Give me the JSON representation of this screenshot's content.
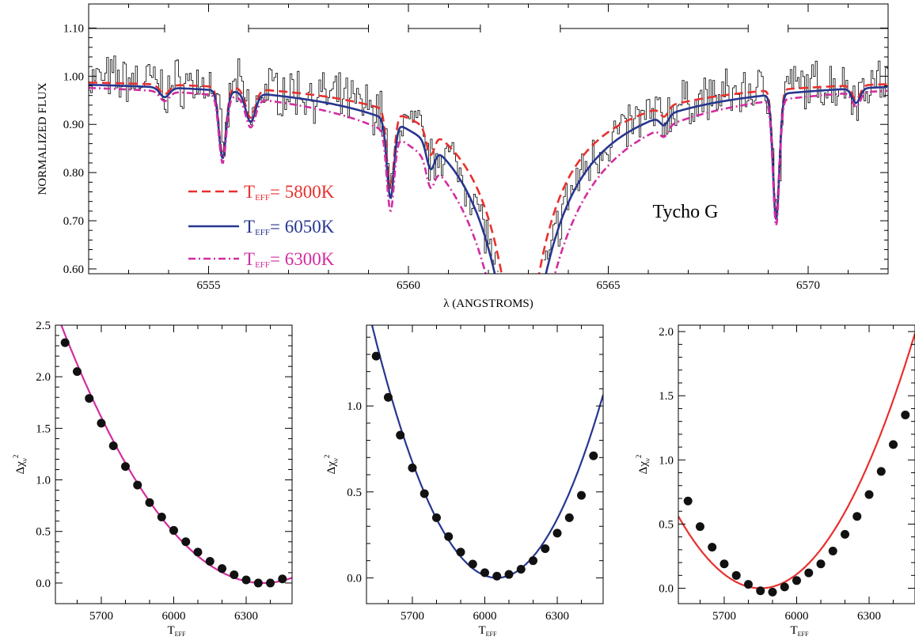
{
  "chart_data": [
    {
      "type": "line",
      "panel": "spectrum",
      "xlabel": "λ (ANGSTROMS)",
      "ylabel": "NORMALIZED FLUX",
      "xlim": [
        6552,
        6572
      ],
      "ylim": [
        0.59,
        1.15
      ],
      "xticks": [
        6555,
        6560,
        6565,
        6570
      ],
      "yticks": [
        0.6,
        0.7,
        0.8,
        0.9,
        1.0,
        1.1
      ],
      "ytick_labels": [
        "0.60",
        "0.70",
        "0.80",
        "0.90",
        "1.00",
        "1.10"
      ],
      "annotation": "Tycho G",
      "fit_ranges": [
        [
          6552,
          6553.9
        ],
        [
          6556.0,
          6559.0
        ],
        [
          6560.0,
          6561.8
        ],
        [
          6563.8,
          6568.5
        ],
        [
          6569.5,
          6572
        ]
      ],
      "line_depths": [
        {
          "lambda": 6555.35,
          "depth": 0.14,
          "width": 0.09
        },
        {
          "lambda": 6556.05,
          "depth": 0.06,
          "width": 0.12
        },
        {
          "lambda": 6559.55,
          "depth": 0.16,
          "width": 0.09
        },
        {
          "lambda": 6560.55,
          "depth": 0.05,
          "width": 0.1
        },
        {
          "lambda": 6569.2,
          "depth": 0.26,
          "width": 0.08
        },
        {
          "lambda": 6571.2,
          "depth": 0.03,
          "width": 0.1
        },
        {
          "lambda": 6553.9,
          "depth": 0.02,
          "width": 0.12
        },
        {
          "lambda": 6566.4,
          "depth": 0.02,
          "width": 0.1
        }
      ],
      "series": [
        {
          "name": "observed",
          "color": "#000000",
          "style": "histogram"
        },
        {
          "label_prefix": "T",
          "label_sub": "EFF",
          "label_value": "= 5800K",
          "color": "#e8302e",
          "style": "dashed",
          "teff": 5800,
          "halfwidth": 3.9,
          "wing_scale": 1.0
        },
        {
          "label_prefix": "T",
          "label_sub": "EFF",
          "label_value": "= 6050K",
          "color": "#27368f",
          "style": "solid",
          "teff": 6050,
          "halfwidth": 4.6,
          "wing_scale": 1.1
        },
        {
          "label_prefix": "T",
          "label_sub": "EFF",
          "label_value": "= 6300K",
          "color": "#d22da0",
          "style": "dashdot",
          "teff": 6300,
          "halfwidth": 5.4,
          "wing_scale": 1.22
        }
      ]
    },
    {
      "type": "scatter",
      "panel": "chi2-a",
      "xlabel_main": "T",
      "xlabel_sub": "EFF",
      "ylabel_main": "Δχ",
      "ylabel_sub": "ν",
      "ylabel_sup": "2",
      "xlim": [
        5510,
        6490
      ],
      "ylim": [
        -0.2,
        2.5
      ],
      "xticks": [
        5700,
        6000,
        6300
      ],
      "yticks": [
        0.0,
        0.5,
        1.0,
        1.5,
        2.0,
        2.5
      ],
      "ytick_labels": [
        "0.0",
        "0.5",
        "1.0",
        "1.5",
        "2.0",
        "2.5"
      ],
      "curve_color": "#d22da0",
      "curve_min": {
        "x": 6370,
        "y": 0.0
      },
      "curve_quadratic_a": 3.58e-06,
      "points_x": [
        5550,
        5600,
        5650,
        5700,
        5750,
        5800,
        5850,
        5900,
        5950,
        6000,
        6050,
        6100,
        6150,
        6200,
        6250,
        6300,
        6350,
        6400,
        6450
      ],
      "points_y": [
        2.33,
        2.05,
        1.79,
        1.55,
        1.33,
        1.13,
        0.95,
        0.78,
        0.64,
        0.51,
        0.4,
        0.3,
        0.21,
        0.14,
        0.08,
        0.03,
        0.0,
        0.0,
        0.04
      ]
    },
    {
      "type": "scatter",
      "panel": "chi2-b",
      "xlabel_main": "T",
      "xlabel_sub": "EFF",
      "ylabel_main": "Δχ",
      "ylabel_sub": "ν",
      "ylabel_sup": "2",
      "xlim": [
        5510,
        6490
      ],
      "ylim": [
        -0.15,
        1.47
      ],
      "xticks": [
        5700,
        6000,
        6300
      ],
      "yticks": [
        0.0,
        0.5,
        1.0
      ],
      "ytick_labels": [
        "0.0",
        "0.5",
        "1.0"
      ],
      "curve_color": "#27368f",
      "curve_min": {
        "x": 6050,
        "y": 0.0
      },
      "curve_quadratic_a": 5.5e-06,
      "points_x": [
        5550,
        5600,
        5650,
        5700,
        5750,
        5800,
        5850,
        5900,
        5950,
        6000,
        6050,
        6100,
        6150,
        6200,
        6250,
        6300,
        6350,
        6400,
        6450
      ],
      "points_y": [
        1.29,
        1.05,
        0.83,
        0.64,
        0.49,
        0.35,
        0.24,
        0.15,
        0.08,
        0.03,
        0.01,
        0.02,
        0.05,
        0.1,
        0.17,
        0.26,
        0.35,
        0.48,
        0.71
      ]
    },
    {
      "type": "scatter",
      "panel": "chi2-c",
      "xlabel_main": "T",
      "xlabel_sub": "EFF",
      "ylabel_main": "Δχ",
      "ylabel_sub": "ν",
      "ylabel_sup": "2",
      "xlim": [
        5510,
        6490
      ],
      "ylim": [
        -0.12,
        2.05
      ],
      "xticks": [
        5700,
        6000,
        6300
      ],
      "yticks": [
        0.0,
        0.5,
        1.0,
        1.5,
        2.0
      ],
      "ytick_labels": [
        "0.0",
        "0.5",
        "1.0",
        "1.5",
        "2.0"
      ],
      "curve_color": "#e8302e",
      "curve_min": {
        "x": 5850,
        "y": 0.0
      },
      "curve_quadratic_a": 4.85e-06,
      "points_x": [
        5550,
        5600,
        5650,
        5700,
        5750,
        5800,
        5850,
        5900,
        5950,
        6000,
        6050,
        6100,
        6150,
        6200,
        6250,
        6300,
        6350,
        6400,
        6450
      ],
      "points_y": [
        0.68,
        0.48,
        0.32,
        0.19,
        0.1,
        0.03,
        -0.02,
        -0.03,
        0.01,
        0.06,
        0.12,
        0.19,
        0.29,
        0.42,
        0.56,
        0.73,
        0.91,
        1.12,
        1.35
      ]
    }
  ]
}
